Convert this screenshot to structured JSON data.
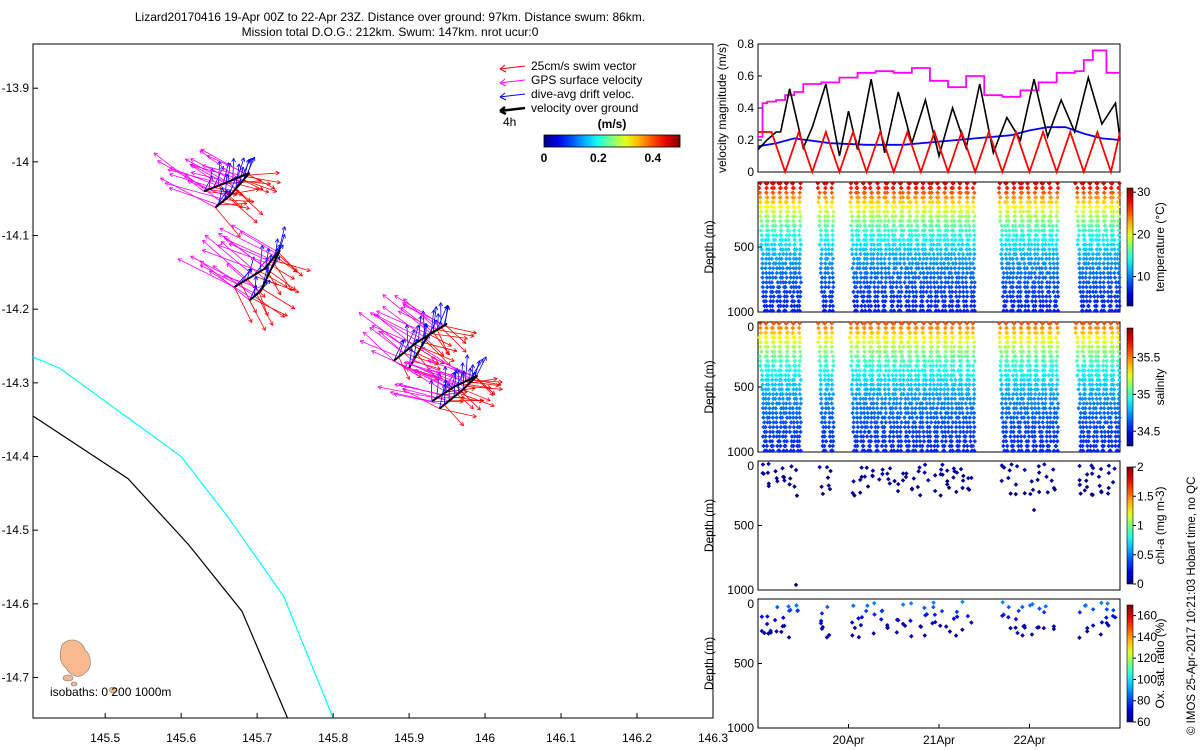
{
  "title": {
    "line1": "Lizard20170416 19-Apr 00Z to 22-Apr 23Z. Distance over ground: 97km. Distance swum: 86km.",
    "line2": "Mission total D.O.G.: 212km. Swum: 147km. nrot ucur:0"
  },
  "credit": "© IMOS 25-Apr-2017 10:21:03 Hobart time, no QC",
  "chart_data": [
    {
      "type": "scatter",
      "name": "track-map",
      "x_ticks": [
        "145.5",
        "145.6",
        "145.7",
        "145.8",
        "145.9",
        "146",
        "146.1",
        "146.2",
        "146.3"
      ],
      "x_tick_values": [
        145.5,
        145.6,
        145.7,
        145.8,
        145.9,
        146.0,
        146.1,
        146.2,
        146.3
      ],
      "y_ticks": [
        "-13.9",
        "-14",
        "-14.1",
        "-14.2",
        "-14.3",
        "-14.4",
        "-14.5",
        "-14.6",
        "-14.7"
      ],
      "y_tick_values": [
        -13.9,
        -14.0,
        -14.1,
        -14.2,
        -14.3,
        -14.4,
        -14.5,
        -14.6,
        -14.7
      ],
      "xlim": [
        145.405,
        146.3
      ],
      "ylim": [
        -14.755,
        -13.84
      ],
      "legend": {
        "items": [
          {
            "label": "25cm/s swim vector",
            "color": "#ff0000"
          },
          {
            "label": "GPS surface velocity",
            "color": "#ff00ff"
          },
          {
            "label": "dive-avg drift veloc.",
            "color": "#0000ff"
          },
          {
            "label": "velocity over ground",
            "color": "#000000"
          }
        ],
        "interval": "4h"
      },
      "colorbar": {
        "label": "(m/s)",
        "ticks": [
          "0",
          "0.2",
          "0.4"
        ],
        "tick_values": [
          0,
          0.2,
          0.4
        ],
        "range": [
          0,
          0.5
        ]
      },
      "isobaths_label": "isobaths: 0   200  1000m",
      "isobath_200": {
        "color": "#00ffff",
        "lon": [
          145.405,
          145.44,
          145.52,
          145.6,
          145.66,
          145.735,
          145.8
        ],
        "lat": [
          -14.265,
          -14.28,
          -14.34,
          -14.4,
          -14.48,
          -14.59,
          -14.755
        ]
      },
      "isobath_1000": {
        "color": "#000000",
        "lon": [
          145.405,
          145.53,
          145.61,
          145.68,
          145.74
        ],
        "lat": [
          -14.345,
          -14.43,
          -14.52,
          -14.61,
          -14.755
        ]
      },
      "clusters": [
        {
          "lon": [
            145.63,
            145.66,
            145.69,
            145.665,
            145.645
          ],
          "lat": [
            -14.04,
            -14.028,
            -14.015,
            -14.045,
            -14.062
          ],
          "swim_dir": -20,
          "gps_dir": 155,
          "drift_dir": 70,
          "count": 10
        },
        {
          "lon": [
            145.67,
            145.71,
            145.73,
            145.705,
            145.69
          ],
          "lat": [
            -14.17,
            -14.145,
            -14.12,
            -14.175,
            -14.188
          ],
          "swim_dir": -45,
          "gps_dir": 150,
          "drift_dir": 65,
          "count": 10
        },
        {
          "lon": [
            145.88,
            145.91,
            145.95,
            145.925,
            145.9
          ],
          "lat": [
            -14.27,
            -14.245,
            -14.22,
            -14.235,
            -14.28
          ],
          "swim_dir": -35,
          "gps_dir": 145,
          "drift_dir": 75,
          "count": 10
        },
        {
          "lon": [
            145.93,
            145.96,
            145.99,
            145.97,
            145.94
          ],
          "lat": [
            -14.325,
            -14.305,
            -14.29,
            -14.31,
            -14.335
          ],
          "swim_dir": -20,
          "gps_dir": 160,
          "drift_dir": 75,
          "count": 10
        }
      ]
    },
    {
      "type": "line",
      "name": "velocity-magnitude",
      "ylabel": "velocity magnitude (m/s)",
      "y_ticks": [
        "0",
        "0.2",
        "0.4",
        "0.6",
        "0.8"
      ],
      "y_tick_values": [
        0,
        0.2,
        0.4,
        0.6,
        0.8
      ],
      "ylim": [
        0,
        0.8
      ],
      "xlim": [
        0,
        4
      ],
      "series": [
        {
          "name": "GPS surface velocity",
          "color": "#ff00ff",
          "x": [
            0,
            0.05,
            0.1,
            0.2,
            0.3,
            0.4,
            0.5,
            0.7,
            0.9,
            1.1,
            1.3,
            1.5,
            1.7,
            1.9,
            2.1,
            2.3,
            2.5,
            2.7,
            2.9,
            3.1,
            3.3,
            3.5,
            3.6,
            3.7,
            3.85,
            4.0
          ],
          "y": [
            0.22,
            0.43,
            0.44,
            0.45,
            0.48,
            0.5,
            0.55,
            0.56,
            0.59,
            0.62,
            0.63,
            0.62,
            0.65,
            0.57,
            0.53,
            0.6,
            0.48,
            0.47,
            0.51,
            0.56,
            0.62,
            0.63,
            0.7,
            0.76,
            0.62,
            0.58
          ]
        },
        {
          "name": "dive-avg drift veloc.",
          "color": "#0000ff",
          "x": [
            0,
            0.2,
            0.4,
            0.8,
            1.2,
            1.6,
            2.0,
            2.4,
            2.8,
            3.0,
            3.2,
            3.4,
            3.6,
            3.8,
            4.0
          ],
          "y": [
            0.16,
            0.18,
            0.21,
            0.18,
            0.17,
            0.17,
            0.19,
            0.21,
            0.23,
            0.26,
            0.28,
            0.28,
            0.24,
            0.21,
            0.2
          ]
        },
        {
          "name": "velocity over ground",
          "color": "#000000",
          "x": [
            0,
            0.1,
            0.2,
            0.25,
            0.35,
            0.5,
            0.6,
            0.75,
            0.9,
            1.0,
            1.1,
            1.25,
            1.4,
            1.55,
            1.7,
            1.85,
            2.0,
            2.15,
            2.3,
            2.45,
            2.6,
            2.75,
            2.9,
            3.05,
            3.2,
            3.35,
            3.5,
            3.65,
            3.8,
            3.95,
            4.0
          ],
          "y": [
            0.14,
            0.2,
            0.25,
            0.25,
            0.52,
            0.15,
            0.28,
            0.55,
            0.1,
            0.38,
            0.14,
            0.58,
            0.12,
            0.5,
            0.18,
            0.45,
            0.1,
            0.4,
            0.15,
            0.55,
            0.12,
            0.34,
            0.2,
            0.58,
            0.22,
            0.45,
            0.25,
            0.59,
            0.3,
            0.43,
            0.2
          ]
        },
        {
          "name": "25cm/s swim vector",
          "color": "#ff0000",
          "x": [
            0,
            0.15,
            0.3,
            0.45,
            0.6,
            0.75,
            0.9,
            1.05,
            1.2,
            1.35,
            1.5,
            1.65,
            1.8,
            1.95,
            2.1,
            2.25,
            2.4,
            2.55,
            2.7,
            2.85,
            3.0,
            3.15,
            3.3,
            3.45,
            3.6,
            3.75,
            3.9,
            4.0
          ],
          "y": [
            0.25,
            0.25,
            0.0,
            0.25,
            0.0,
            0.25,
            0.0,
            0.25,
            0.0,
            0.25,
            0.0,
            0.25,
            0.0,
            0.25,
            0.0,
            0.25,
            0.0,
            0.25,
            0.0,
            0.25,
            0.0,
            0.25,
            0.0,
            0.25,
            0.0,
            0.25,
            0.0,
            0.25
          ]
        }
      ]
    },
    {
      "type": "scatter",
      "name": "temperature-profile",
      "ylabel": "Depth (m)",
      "y_ticks": [
        "500",
        "1000"
      ],
      "y_tick_values": [
        500,
        1000
      ],
      "ylim": [
        0,
        1000
      ],
      "colorbar": {
        "label": "temperature (°C)",
        "ticks": [
          "10",
          "20",
          "30"
        ],
        "tick_values": [
          10,
          20,
          30
        ],
        "range": [
          3,
          31
        ]
      },
      "max_depth": 1000,
      "surface_value": 29.5,
      "deep_value": 5
    },
    {
      "type": "scatter",
      "name": "salinity-profile",
      "ylabel": "Depth (m)",
      "y_ticks": [
        "0",
        "500",
        "1000"
      ],
      "y_tick_values": [
        0,
        500,
        1000
      ],
      "ylim": [
        0,
        1000
      ],
      "colorbar": {
        "label": "salinity",
        "ticks": [
          "34.5",
          "35",
          "35.5"
        ],
        "tick_values": [
          34.5,
          35,
          35.5
        ],
        "range": [
          34.3,
          35.9
        ]
      },
      "max_depth": 1000,
      "surface_value": 35.6,
      "deep_value": 34.45
    },
    {
      "type": "scatter",
      "name": "chla-profile",
      "ylabel": "Depth (m)",
      "y_ticks": [
        "0",
        "500",
        "1000"
      ],
      "y_tick_values": [
        0,
        500,
        1000
      ],
      "ylim": [
        0,
        1000
      ],
      "colorbar": {
        "label": "chl-a (mg m-3)",
        "ticks": [
          "0",
          "0.5",
          "1",
          "1.5",
          "2"
        ],
        "tick_values": [
          0,
          0.5,
          1,
          1.5,
          2
        ],
        "range": [
          0,
          2
        ]
      },
      "max_depth": 250,
      "surface_value": 0.1,
      "deep_value": 0.02,
      "outliers": [
        {
          "t": 0.42,
          "d": 960
        },
        {
          "t": 3.05,
          "d": 380
        }
      ]
    },
    {
      "type": "scatter",
      "name": "oxygen-profile",
      "ylabel": "Depth (m)",
      "y_ticks": [
        "0",
        "500",
        "1000"
      ],
      "y_tick_values": [
        0,
        500,
        1000
      ],
      "ylim": [
        0,
        1000
      ],
      "x_ticks": [
        "20Apr",
        "21Apr",
        "22Apr"
      ],
      "x_tick_values": [
        1,
        2,
        3
      ],
      "colorbar": {
        "label": "Ox. sat. ratio (%)",
        "ticks": [
          "60",
          "80",
          "100",
          "120",
          "140",
          "160"
        ],
        "tick_values": [
          60,
          80,
          100,
          120,
          140,
          160
        ],
        "range": [
          60,
          170
        ]
      },
      "max_depth": 280,
      "surface_value": 92,
      "deep_value": 64
    }
  ],
  "dives": [
    0.05,
    0.12,
    0.2,
    0.27,
    0.35,
    0.42,
    0.7,
    0.78,
    1.05,
    1.13,
    1.2,
    1.28,
    1.36,
    1.45,
    1.53,
    1.62,
    1.7,
    1.78,
    1.86,
    1.94,
    2.02,
    2.1,
    2.18,
    2.26,
    2.34,
    2.7,
    2.78,
    2.86,
    2.94,
    3.02,
    3.1,
    3.18,
    3.26,
    3.55,
    3.62,
    3.7,
    3.78,
    3.86,
    3.94
  ]
}
